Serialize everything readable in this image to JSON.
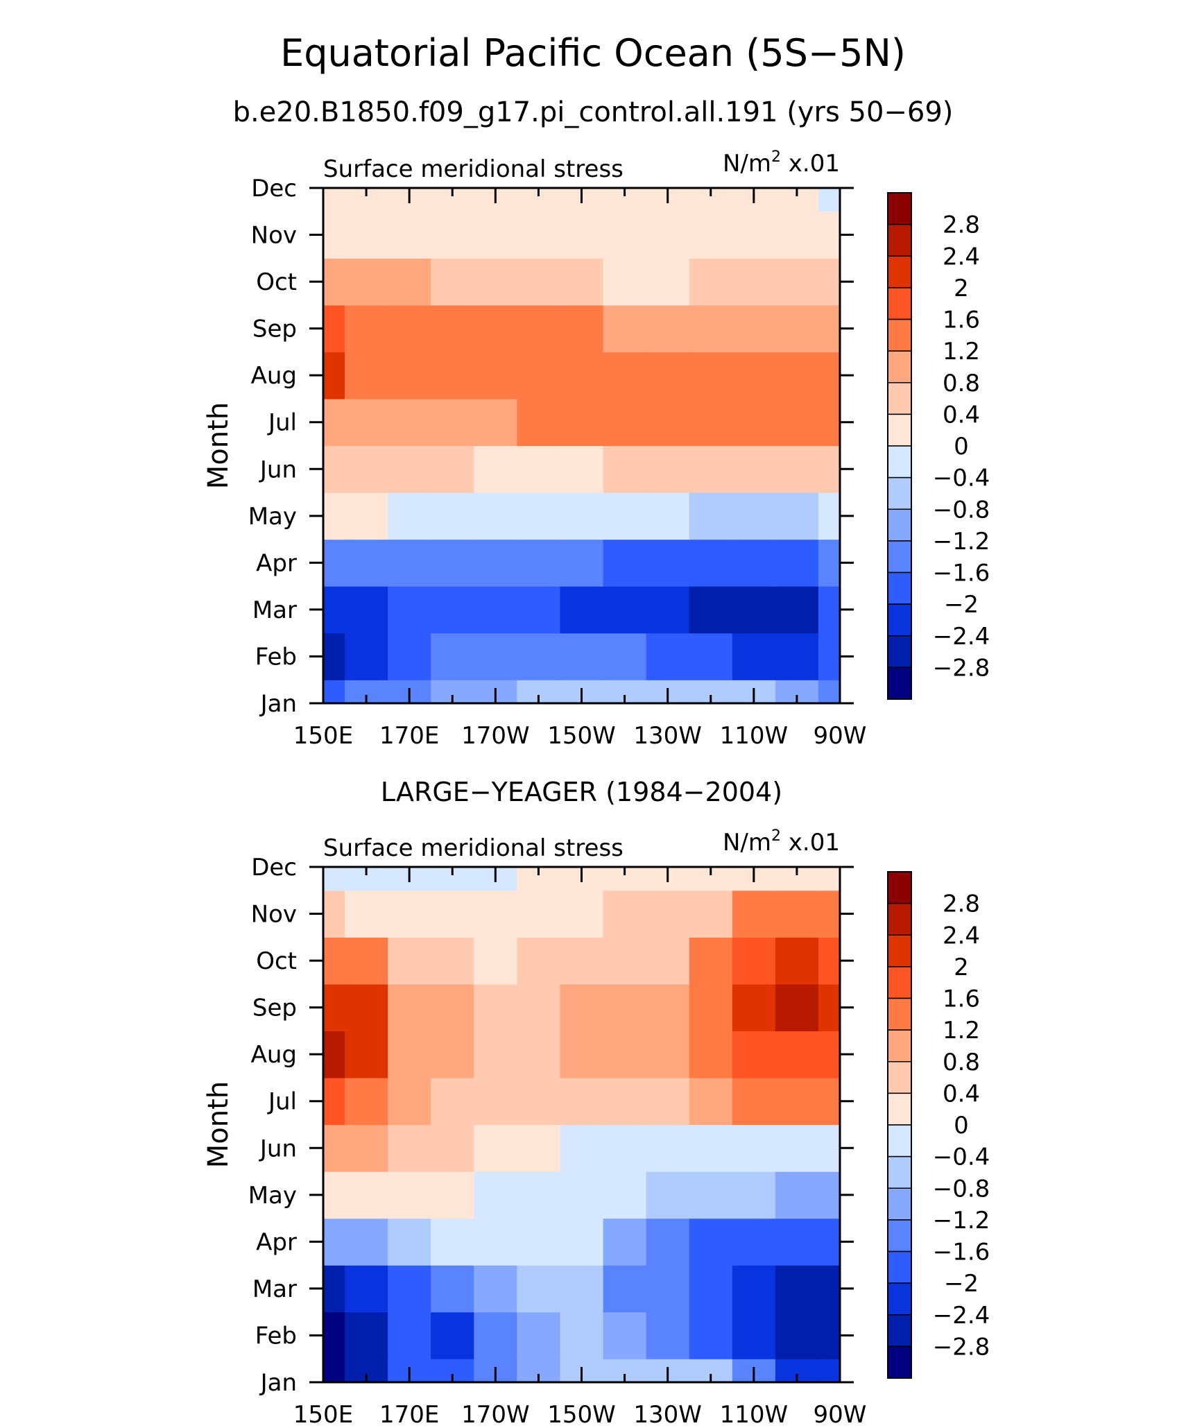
{
  "figure": {
    "title": "Equatorial Pacific Ocean (5S−5N)",
    "subtitle": "b.e20.B1850.f09_g17.pi_control.all.191 (yrs 50−69)"
  },
  "colorbar": {
    "levels": [
      "2.8",
      "2.4",
      "2",
      "1.6",
      "1.2",
      "0.8",
      "0.4",
      "0",
      "−0.4",
      "−0.8",
      "−1.2",
      "−1.6",
      "−2",
      "−2.4",
      "−2.8"
    ],
    "colors": [
      "#8b0000",
      "#b81a00",
      "#df3300",
      "#ff5524",
      "#ff7a45",
      "#ffa77e",
      "#ffcab0",
      "#ffe6d6",
      "#d6e8ff",
      "#b0ccff",
      "#86a8ff",
      "#5a84ff",
      "#2f5cff",
      "#0a33e0",
      "#001fad",
      "#000080"
    ]
  },
  "chart_data": [
    {
      "type": "heatmap",
      "panel_title": "",
      "left_label": "Surface meridional stress",
      "right_label_base": "N/m",
      "right_label_sup": "2",
      "right_label_tail": " x.01",
      "ylabel": "Month",
      "x_ticks": [
        "150E",
        "170E",
        "170W",
        "150W",
        "130W",
        "110W",
        "90W"
      ],
      "y_ticks": [
        "Jan",
        "Feb",
        "Mar",
        "Apr",
        "May",
        "Jun",
        "Jul",
        "Aug",
        "Sep",
        "Oct",
        "Nov",
        "Dec"
      ],
      "xlim_deg_east": [
        150,
        270
      ],
      "x_grid_deg_east": [
        150,
        160,
        170,
        180,
        190,
        200,
        210,
        220,
        230,
        240,
        250,
        260,
        270
      ],
      "values": [
        [
          -1.9,
          -1.6,
          -1.3,
          -1.1,
          -0.9,
          -0.8,
          -0.7,
          -0.6,
          -0.5,
          -0.5,
          -0.6,
          -0.9,
          -1.4
        ],
        [
          -2.6,
          -2.1,
          -1.8,
          -1.5,
          -1.5,
          -1.5,
          -1.5,
          -1.6,
          -1.8,
          -2.0,
          -2.1,
          -2.1,
          -1.8
        ],
        [
          -2.1,
          -2.1,
          -2.0,
          -2.0,
          -2.0,
          -2.0,
          -2.1,
          -2.2,
          -2.4,
          -2.5,
          -2.6,
          -2.5,
          -2.0
        ],
        [
          -1.5,
          -1.6,
          -1.6,
          -1.6,
          -1.6,
          -1.6,
          -1.6,
          -1.7,
          -1.8,
          -1.9,
          -1.9,
          -1.8,
          -1.6
        ],
        [
          0.1,
          0.0,
          -0.1,
          -0.2,
          -0.3,
          -0.3,
          -0.4,
          -0.4,
          -0.4,
          -0.5,
          -0.5,
          -0.5,
          -0.4
        ],
        [
          0.6,
          0.6,
          0.5,
          0.4,
          0.3,
          0.3,
          0.3,
          0.4,
          0.4,
          0.5,
          0.6,
          0.6,
          0.6
        ],
        [
          1.1,
          1.1,
          1.0,
          1.0,
          1.1,
          1.2,
          1.3,
          1.3,
          1.3,
          1.3,
          1.3,
          1.3,
          1.3
        ],
        [
          2.0,
          1.3,
          1.3,
          1.3,
          1.4,
          1.5,
          1.5,
          1.4,
          1.3,
          1.3,
          1.4,
          1.4,
          1.3
        ],
        [
          1.8,
          1.4,
          1.4,
          1.5,
          1.5,
          1.4,
          1.2,
          1.1,
          1.1,
          1.0,
          0.9,
          0.9,
          0.8
        ],
        [
          1.0,
          0.9,
          0.8,
          0.7,
          0.6,
          0.5,
          0.4,
          0.3,
          0.3,
          0.4,
          0.5,
          0.5,
          0.5
        ],
        [
          0.3,
          0.2,
          0.2,
          0.2,
          0.2,
          0.2,
          0.1,
          0.1,
          0.1,
          0.3,
          0.3,
          0.2,
          0.1
        ],
        [
          0.0,
          0.1,
          0.1,
          0.1,
          0.1,
          0.1,
          0.1,
          0.1,
          0.1,
          0.1,
          0.1,
          0.1,
          -0.1
        ]
      ]
    },
    {
      "type": "heatmap",
      "panel_title": "LARGE−YEAGER (1984−2004)",
      "left_label": "Surface meridional stress",
      "right_label_base": "N/m",
      "right_label_sup": "2",
      "right_label_tail": " x.01",
      "ylabel": "Month",
      "x_ticks": [
        "150E",
        "170E",
        "170W",
        "150W",
        "130W",
        "110W",
        "90W"
      ],
      "y_ticks": [
        "Jan",
        "Feb",
        "Mar",
        "Apr",
        "May",
        "Jun",
        "Jul",
        "Aug",
        "Sep",
        "Oct",
        "Nov",
        "Dec"
      ],
      "xlim_deg_east": [
        150,
        270
      ],
      "x_grid_deg_east": [
        150,
        160,
        170,
        180,
        190,
        200,
        210,
        220,
        230,
        240,
        250,
        260,
        270
      ],
      "values": [
        [
          -3.0,
          -2.6,
          -2.0,
          -1.7,
          -1.3,
          -1.0,
          -0.8,
          -0.7,
          -0.5,
          -0.8,
          -1.5,
          -2.2,
          -2.4
        ],
        [
          -3.0,
          -2.6,
          -1.8,
          -2.2,
          -1.6,
          -1.0,
          -0.6,
          -0.9,
          -1.5,
          -1.8,
          -2.3,
          -2.6,
          -2.6
        ],
        [
          -2.6,
          -2.3,
          -1.8,
          -1.4,
          -1.2,
          -0.5,
          -0.6,
          -1.4,
          -1.6,
          -2.0,
          -2.4,
          -2.7,
          -2.5
        ],
        [
          -1.2,
          -1.0,
          -0.7,
          -0.3,
          -0.1,
          -0.2,
          -0.3,
          -1.0,
          -1.6,
          -1.8,
          -1.8,
          -1.9,
          -1.9
        ],
        [
          0.2,
          0.2,
          0.2,
          0.2,
          -0.1,
          -0.1,
          -0.2,
          -0.4,
          -0.6,
          -0.8,
          -0.8,
          -1.0,
          -1.1
        ],
        [
          0.8,
          0.9,
          0.5,
          0.4,
          0.2,
          0.0,
          -0.1,
          -0.1,
          -0.1,
          -0.2,
          -0.3,
          -0.3,
          -0.3
        ],
        [
          1.8,
          1.2,
          0.9,
          0.6,
          0.6,
          0.4,
          0.5,
          0.5,
          0.6,
          0.9,
          1.3,
          1.5,
          1.5
        ],
        [
          2.7,
          2.1,
          1.1,
          0.9,
          0.6,
          0.4,
          0.9,
          1.0,
          1.1,
          1.3,
          1.7,
          1.9,
          1.7
        ],
        [
          2.3,
          2.0,
          1.0,
          0.9,
          0.7,
          0.6,
          0.9,
          1.0,
          1.0,
          1.3,
          2.2,
          2.6,
          2.1
        ],
        [
          1.5,
          1.5,
          0.6,
          0.6,
          0.3,
          0.5,
          0.7,
          0.7,
          0.5,
          1.2,
          1.8,
          2.2,
          1.8
        ],
        [
          0.4,
          0.3,
          0.3,
          0.1,
          0.0,
          0.3,
          0.3,
          0.4,
          0.4,
          0.7,
          1.2,
          1.4,
          1.3
        ],
        [
          -0.3,
          -0.3,
          -0.1,
          -0.1,
          -0.2,
          0.0,
          0.2,
          0.2,
          0.1,
          0.2,
          0.3,
          0.1,
          0.1
        ]
      ]
    }
  ]
}
